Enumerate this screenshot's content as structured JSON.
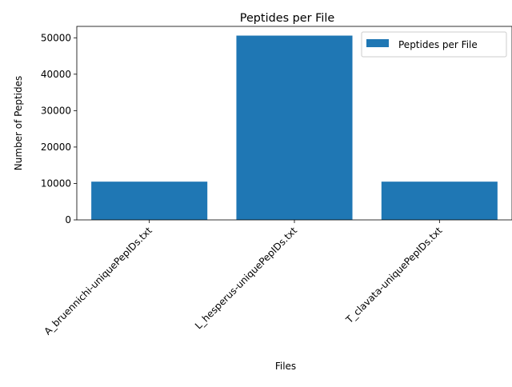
{
  "chart_data": {
    "type": "bar",
    "title": "Peptides per File",
    "xlabel": "Files",
    "ylabel": "Number of Peptides",
    "categories": [
      "A_bruennichi-uniquePepIDs.txt",
      "L_hesperus-uniquePepIDs.txt",
      "T_clavata-uniquePepIDs.txt"
    ],
    "series": [
      {
        "name": "Peptides per File",
        "values": [
          10500,
          50600,
          10500
        ],
        "color": "#1f77b4"
      }
    ],
    "ylim": [
      0,
      53130
    ],
    "yticks": [
      0,
      10000,
      20000,
      30000,
      40000,
      50000
    ],
    "grid": false,
    "legend_position": "top-right"
  }
}
